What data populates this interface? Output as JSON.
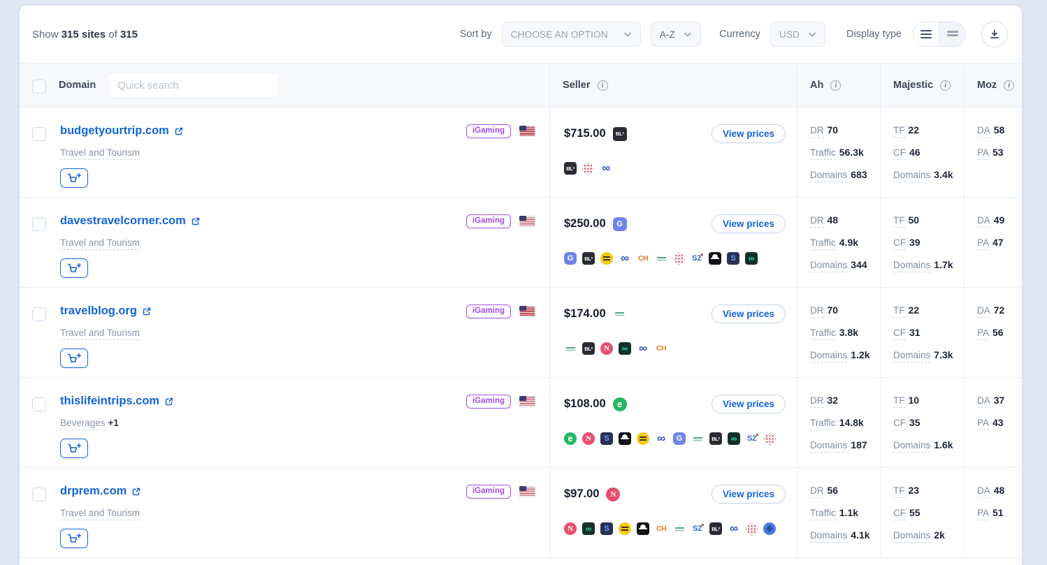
{
  "toolbar": {
    "show_label": "Show",
    "show_sites": "315 sites",
    "show_of": "of",
    "show_total": "315",
    "sort_by_label": "Sort by",
    "sort_option_value": "CHOOSE AN OPTION",
    "order_value": "A-Z",
    "currency_label": "Currency",
    "currency_value": "USD",
    "display_type_label": "Display type"
  },
  "table": {
    "columns": {
      "domain": "Domain",
      "seller": "Seller",
      "ah": "Ah",
      "majestic": "Majestic",
      "moz": "Moz"
    },
    "search_placeholder": "Quick search",
    "view_prices_label": "View prices",
    "metric_labels": {
      "dr": "DR",
      "traffic": "Traffic",
      "domains": "Domains",
      "tf": "TF",
      "cf": "CF",
      "da": "DA",
      "pa": "PA"
    },
    "rows": [
      {
        "domain": "budgetyourtrip.com",
        "badge": "iGaming",
        "flag": "us",
        "category": "Travel and Tourism",
        "category_extra": "",
        "price": "$715.00",
        "price_icon": "bl",
        "seller_icons": [
          "bl",
          "dotgrid",
          "link"
        ],
        "ah": {
          "dr": "70",
          "traffic": "56.3k",
          "domains": "683"
        },
        "majestic": {
          "tf": "22",
          "cf": "46",
          "domains": "3.4k"
        },
        "moz": {
          "da": "58",
          "pa": "53"
        }
      },
      {
        "domain": "davestravelcorner.com",
        "badge": "iGaming",
        "flag": "us",
        "category": "Travel and Tourism",
        "category_extra": "",
        "price": "$250.00",
        "price_icon": "g",
        "seller_icons": [
          "g",
          "bl",
          "yellow",
          "link",
          "ch",
          "green",
          "dotgrid",
          "sz",
          "spy",
          "slink",
          "inf"
        ],
        "ah": {
          "dr": "48",
          "traffic": "4.9k",
          "domains": "344"
        },
        "majestic": {
          "tf": "50",
          "cf": "39",
          "domains": "1.7k"
        },
        "moz": {
          "da": "49",
          "pa": "47"
        }
      },
      {
        "domain": "travelblog.org",
        "badge": "iGaming",
        "flag": "us",
        "category": "Travel and Tourism",
        "category_extra": "",
        "price": "$174.00",
        "price_icon": "green",
        "seller_icons": [
          "green",
          "bl",
          "n",
          "inf",
          "link",
          "ch"
        ],
        "ah": {
          "dr": "70",
          "traffic": "3.8k",
          "domains": "1.2k"
        },
        "majestic": {
          "tf": "22",
          "cf": "31",
          "domains": "7.3k"
        },
        "moz": {
          "da": "72",
          "pa": "56"
        }
      },
      {
        "domain": "thislifeintrips.com",
        "badge": "iGaming",
        "flag": "us",
        "category": "Beverages",
        "category_extra": "+1",
        "price": "$108.00",
        "price_icon": "e",
        "seller_icons": [
          "e",
          "n",
          "slink",
          "spy",
          "yellow",
          "link",
          "g",
          "green",
          "bl",
          "inf",
          "sz",
          "dotgrid"
        ],
        "ah": {
          "dr": "32",
          "traffic": "14.8k",
          "domains": "187"
        },
        "majestic": {
          "tf": "10",
          "cf": "35",
          "domains": "1.6k"
        },
        "moz": {
          "da": "37",
          "pa": "43"
        }
      },
      {
        "domain": "drprem.com",
        "badge": "iGaming",
        "flag": "us",
        "category": "Travel and Tourism",
        "category_extra": "",
        "price": "$97.00",
        "price_icon": "n",
        "seller_icons": [
          "n",
          "inf",
          "slink",
          "yellow",
          "spy",
          "ch",
          "green",
          "sz",
          "bl",
          "link",
          "dotgrid",
          "bluegear"
        ],
        "ah": {
          "dr": "56",
          "traffic": "1.1k",
          "domains": "4.1k"
        },
        "majestic": {
          "tf": "23",
          "cf": "55",
          "domains": "2k"
        },
        "moz": {
          "da": "48",
          "pa": "51"
        }
      }
    ]
  },
  "icon_glyphs": {
    "bl": "BL²",
    "g": "G",
    "ch": "CH",
    "sz": "SZ",
    "slink": "S",
    "inf": "∞",
    "link": "∞",
    "n": "N",
    "e": "e",
    "yellow": "",
    "green": "",
    "dotgrid": "",
    "spy": "",
    "bluegear": ""
  },
  "colors": {
    "accent_blue": "#1464d8",
    "badge_purple": "#a34ee8",
    "price_dark": "#151a2d",
    "page_background": "#dee7f2",
    "header_band": "#f6f8fc"
  }
}
